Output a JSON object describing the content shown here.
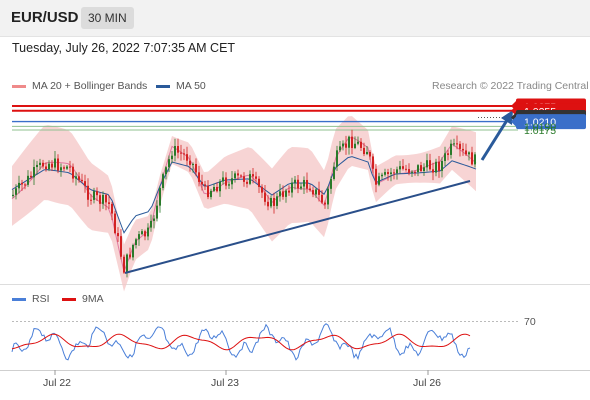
{
  "header": {
    "pair": "EUR/USD",
    "timeframe": "30 MIN"
  },
  "timestamp": "Tuesday, July 26, 2022 7:07:35 AM CET",
  "legend": {
    "ma_bb": "MA 20 + Bollinger Bands",
    "ma50": "MA 50",
    "credit": "Research © 2022 Trading Central"
  },
  "rsi_legend": {
    "rsi": "RSI",
    "ma9": "9MA"
  },
  "colors": {
    "resistance": "#dd1111",
    "support": "#3a6fc9",
    "target": "#2a7a2a",
    "last": "#333333",
    "arrow": "#2a5a9a",
    "bands": "#f4c6c6",
    "up_candle": "#2a7a2a",
    "down_candle": "#d22222"
  },
  "chart_data": [
    {
      "type": "candlestick",
      "title": "EUR/USD 30 MIN",
      "price_levels": [
        {
          "label": "1.0275",
          "value": 1.0275,
          "kind": "resistance"
        },
        {
          "label": "1.0255",
          "value": 1.0255,
          "kind": "resistance"
        },
        {
          "label": "1.0227",
          "value": 1.0227,
          "kind": "last"
        },
        {
          "label": "1.0210",
          "value": 1.021,
          "kind": "pivot"
        },
        {
          "label": "1.0190",
          "value": 1.019,
          "kind": "target"
        },
        {
          "label": "1.0175",
          "value": 1.0175,
          "kind": "target"
        }
      ],
      "trendline": {
        "from": {
          "time": "Jul 22",
          "price": 1.0125
        },
        "to": {
          "time": "Jul 26",
          "price": 1.0212
        }
      },
      "x_ticks": [
        "Jul 22",
        "Jul 23",
        "Jul 26"
      ],
      "ylim": [
        1.0115,
        1.029
      ],
      "legend_position": "top-left"
    },
    {
      "type": "line",
      "title": "RSI",
      "series": [
        {
          "name": "RSI"
        },
        {
          "name": "9MA"
        }
      ],
      "y_ticks": [
        70
      ],
      "ylim": [
        20,
        80
      ]
    }
  ]
}
